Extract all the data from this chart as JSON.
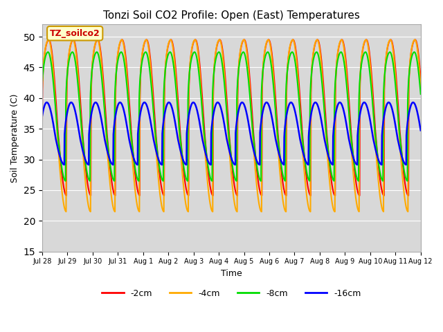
{
  "title": "Tonzi Soil CO2 Profile: Open (East) Temperatures",
  "xlabel": "Time",
  "ylabel": "Soil Temperature (C)",
  "ylim": [
    15,
    52
  ],
  "yticks": [
    15,
    20,
    25,
    30,
    35,
    40,
    45,
    50
  ],
  "legend_labels": [
    "-2cm",
    "-4cm",
    "-8cm",
    "-16cm"
  ],
  "background_color": "#ffffff",
  "plot_bg_color": "#d8d8d8",
  "annotation_text": "TZ_soilco2",
  "annotation_color": "#cc0000",
  "annotation_bg": "#ffffcc",
  "annotation_border": "#cc9900",
  "num_days": 15.5,
  "samples_per_day": 96,
  "series": {
    "2cm": {
      "amplitude": 14.5,
      "mean": 35.0,
      "phase": 0.0,
      "skew": 3.5,
      "color": "#ff0000",
      "lw": 1.5
    },
    "4cm": {
      "amplitude": 16.0,
      "mean": 34.0,
      "phase": 0.08,
      "skew": 3.5,
      "color": "#ffaa00",
      "lw": 1.5
    },
    "8cm": {
      "amplitude": 12.5,
      "mean": 35.5,
      "phase": 0.22,
      "skew": 3.0,
      "color": "#00dd00",
      "lw": 1.5
    },
    "16cm": {
      "amplitude": 5.8,
      "mean": 33.5,
      "phase": 0.55,
      "skew": 1.5,
      "color": "#0000ff",
      "lw": 1.8
    }
  },
  "xtick_labels": [
    "Jul 28",
    "Jul 29",
    "Jul 30",
    "Jul 31",
    "Aug 1",
    "Aug 2",
    "Aug 3",
    "Aug 4",
    "Aug 5",
    "Aug 6",
    "Aug 7",
    "Aug 8",
    "Aug 9",
    "Aug 10",
    "Aug 11",
    "Aug 12"
  ]
}
